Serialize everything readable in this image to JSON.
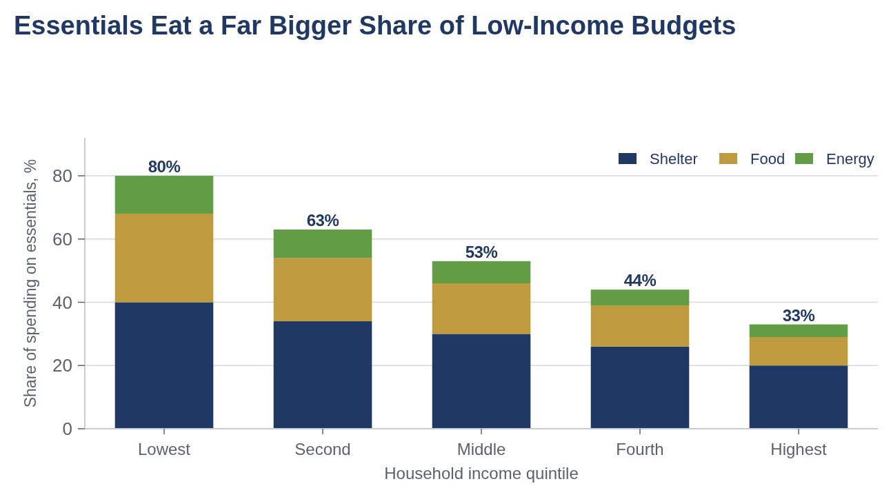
{
  "chart_data": {
    "type": "bar",
    "title": "Essentials Eat a Far Bigger Share of Low-Income Budgets",
    "xlabel": "Household income quintile",
    "ylabel": "Share of spending on essentials, %",
    "categories": [
      "Lowest",
      "Second",
      "Middle",
      "Fourth",
      "Highest"
    ],
    "stacked": true,
    "series": [
      {
        "name": "Shelter",
        "color": "#203864",
        "values": [
          40,
          34,
          30,
          26,
          20
        ]
      },
      {
        "name": "Food",
        "color": "#c09a3e",
        "values": [
          28,
          20,
          16,
          13,
          9
        ]
      },
      {
        "name": "Energy",
        "color": "#629c44",
        "values": [
          12,
          9,
          7,
          5,
          4
        ]
      }
    ],
    "totals": [
      "80%",
      "63%",
      "53%",
      "44%",
      "33%"
    ],
    "ylim": [
      0,
      92
    ],
    "yticks": [
      0,
      20,
      40,
      60,
      80
    ],
    "grid": "y",
    "legend": "top right"
  }
}
